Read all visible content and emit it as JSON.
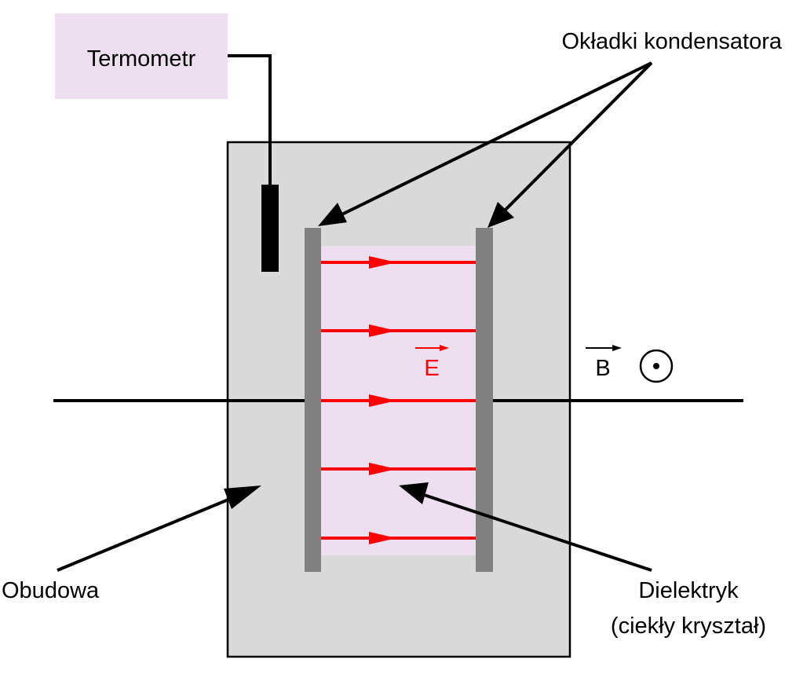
{
  "labels": {
    "thermometer": "Termometr",
    "plates": "Okładki kondensatora",
    "housing": "Obudowa",
    "dielectric_line1": "Dielektryk",
    "dielectric_line2": "(ciekły kryształ)",
    "field_e": "E",
    "field_b": "B"
  },
  "field_lines_count": 5,
  "colors": {
    "housing_fill": "#d9d9d9",
    "dielectric_fill": "#eedff0",
    "thermometer_box_fill": "#eedff0",
    "plate_fill": "#808080",
    "field_line": "#ff0000",
    "outline": "#000000"
  },
  "icons": {
    "b_field_direction": "dot-in-circle-out-of-page-icon"
  }
}
